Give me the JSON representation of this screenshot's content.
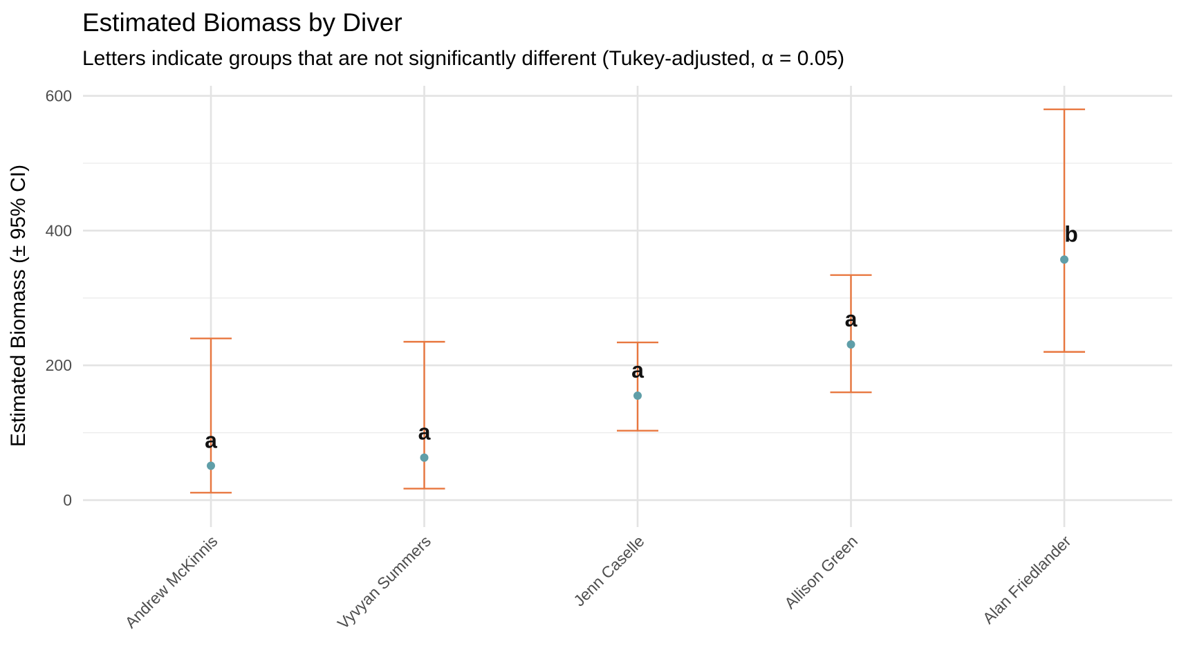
{
  "chart_data": {
    "type": "scatter",
    "title": "Estimated Biomass by Diver",
    "subtitle": "Letters indicate groups that are not significantly different (Tukey-adjusted, α = 0.05)",
    "xlabel": "",
    "ylabel": "Estimated Biomass (± 95% CI)",
    "ylim": [
      -40,
      615
    ],
    "yticks": [
      0,
      200,
      400,
      600
    ],
    "grid": true,
    "categories": [
      "Andrew McKinnis",
      "Vyvyan Summers",
      "Jenn Caselle",
      "Allison Green",
      "Alan Friedlander"
    ],
    "values": [
      51,
      63,
      155,
      231,
      357
    ],
    "lower": [
      11,
      17,
      103,
      160,
      220
    ],
    "upper": [
      240,
      235,
      234,
      334,
      580
    ],
    "letters": [
      "a",
      "a",
      "a",
      "a",
      "b"
    ],
    "point_color": "#5f9ea8",
    "errorbar_color": "#e8773f"
  }
}
